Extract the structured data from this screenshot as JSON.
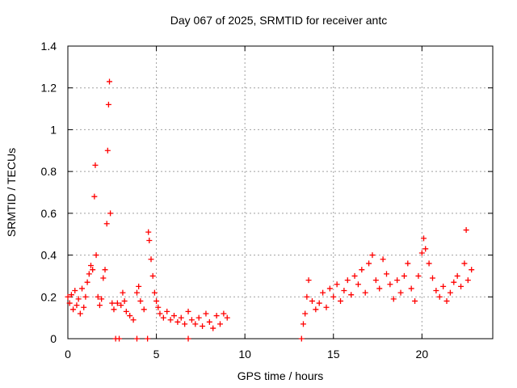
{
  "chart_data": {
    "type": "scatter",
    "title": "Day 067 of 2025, SRMTID for receiver antc",
    "xlabel": "GPS time / hours",
    "ylabel": "SRMTID / TECUs",
    "xlim": [
      0,
      24
    ],
    "ylim": [
      0,
      1.4
    ],
    "xticks": [
      0,
      5,
      10,
      15,
      20
    ],
    "xtick_labels": [
      "0",
      "5",
      "10",
      "15",
      "20"
    ],
    "yticks": [
      0,
      0.2,
      0.4,
      0.6,
      0.8,
      1.0,
      1.2,
      1.4
    ],
    "ytick_labels": [
      "0",
      "0.2",
      "0.4",
      "0.6",
      "0.8",
      "1",
      "1.2",
      "1.4"
    ],
    "grid": true,
    "marker": "+",
    "color": "#ff0000",
    "series": [
      {
        "name": "SRMTID",
        "points": [
          [
            0.0,
            0.2
          ],
          [
            0.1,
            0.17
          ],
          [
            0.2,
            0.21
          ],
          [
            0.3,
            0.14
          ],
          [
            0.4,
            0.23
          ],
          [
            0.5,
            0.16
          ],
          [
            0.6,
            0.19
          ],
          [
            0.7,
            0.12
          ],
          [
            0.8,
            0.24
          ],
          [
            0.9,
            0.15
          ],
          [
            1.0,
            0.2
          ],
          [
            1.1,
            0.27
          ],
          [
            1.2,
            0.31
          ],
          [
            1.3,
            0.35
          ],
          [
            1.4,
            0.33
          ],
          [
            1.5,
            0.68
          ],
          [
            1.55,
            0.83
          ],
          [
            1.6,
            0.4
          ],
          [
            1.7,
            0.2
          ],
          [
            1.8,
            0.16
          ],
          [
            1.9,
            0.19
          ],
          [
            2.0,
            0.29
          ],
          [
            2.1,
            0.33
          ],
          [
            2.2,
            0.55
          ],
          [
            2.25,
            0.9
          ],
          [
            2.3,
            1.12
          ],
          [
            2.35,
            1.23
          ],
          [
            2.4,
            0.6
          ],
          [
            2.5,
            0.17
          ],
          [
            2.6,
            0.14
          ],
          [
            2.7,
            0.0
          ],
          [
            2.8,
            0.17
          ],
          [
            2.9,
            0.0
          ],
          [
            3.0,
            0.16
          ],
          [
            3.1,
            0.22
          ],
          [
            3.2,
            0.18
          ],
          [
            3.3,
            0.13
          ],
          [
            3.5,
            0.11
          ],
          [
            3.7,
            0.09
          ],
          [
            3.9,
            0.0
          ],
          [
            3.9,
            0.22
          ],
          [
            4.0,
            0.25
          ],
          [
            4.1,
            0.18
          ],
          [
            4.3,
            0.14
          ],
          [
            4.5,
            0.0
          ],
          [
            4.55,
            0.51
          ],
          [
            4.6,
            0.47
          ],
          [
            4.7,
            0.38
          ],
          [
            4.8,
            0.3
          ],
          [
            4.9,
            0.22
          ],
          [
            5.0,
            0.18
          ],
          [
            5.1,
            0.15
          ],
          [
            5.2,
            0.12
          ],
          [
            5.4,
            0.1
          ],
          [
            5.6,
            0.13
          ],
          [
            5.8,
            0.09
          ],
          [
            6.0,
            0.11
          ],
          [
            6.2,
            0.08
          ],
          [
            6.4,
            0.1
          ],
          [
            6.6,
            0.07
          ],
          [
            6.8,
            0.0
          ],
          [
            6.8,
            0.13
          ],
          [
            7.0,
            0.09
          ],
          [
            7.2,
            0.07
          ],
          [
            7.4,
            0.1
          ],
          [
            7.6,
            0.06
          ],
          [
            7.8,
            0.12
          ],
          [
            8.0,
            0.08
          ],
          [
            8.2,
            0.05
          ],
          [
            8.4,
            0.11
          ],
          [
            8.6,
            0.07
          ],
          [
            8.8,
            0.12
          ],
          [
            9.0,
            0.1
          ],
          [
            13.2,
            0.0
          ],
          [
            13.3,
            0.07
          ],
          [
            13.4,
            0.12
          ],
          [
            13.5,
            0.2
          ],
          [
            13.6,
            0.28
          ],
          [
            13.8,
            0.18
          ],
          [
            14.0,
            0.14
          ],
          [
            14.2,
            0.17
          ],
          [
            14.4,
            0.22
          ],
          [
            14.6,
            0.15
          ],
          [
            14.8,
            0.24
          ],
          [
            15.0,
            0.2
          ],
          [
            15.2,
            0.26
          ],
          [
            15.4,
            0.18
          ],
          [
            15.6,
            0.23
          ],
          [
            15.8,
            0.28
          ],
          [
            16.0,
            0.21
          ],
          [
            16.2,
            0.3
          ],
          [
            16.4,
            0.26
          ],
          [
            16.6,
            0.33
          ],
          [
            16.8,
            0.22
          ],
          [
            17.0,
            0.36
          ],
          [
            17.2,
            0.4
          ],
          [
            17.4,
            0.28
          ],
          [
            17.6,
            0.24
          ],
          [
            17.8,
            0.38
          ],
          [
            18.0,
            0.31
          ],
          [
            18.2,
            0.26
          ],
          [
            18.4,
            0.19
          ],
          [
            18.6,
            0.28
          ],
          [
            18.8,
            0.22
          ],
          [
            19.0,
            0.3
          ],
          [
            19.2,
            0.36
          ],
          [
            19.4,
            0.24
          ],
          [
            19.6,
            0.18
          ],
          [
            19.8,
            0.3
          ],
          [
            20.0,
            0.41
          ],
          [
            20.1,
            0.48
          ],
          [
            20.2,
            0.43
          ],
          [
            20.4,
            0.36
          ],
          [
            20.6,
            0.29
          ],
          [
            20.8,
            0.23
          ],
          [
            21.0,
            0.2
          ],
          [
            21.2,
            0.25
          ],
          [
            21.4,
            0.18
          ],
          [
            21.6,
            0.22
          ],
          [
            21.8,
            0.27
          ],
          [
            22.0,
            0.3
          ],
          [
            22.2,
            0.25
          ],
          [
            22.4,
            0.36
          ],
          [
            22.5,
            0.52
          ],
          [
            22.6,
            0.28
          ],
          [
            22.8,
            0.33
          ]
        ]
      }
    ]
  }
}
